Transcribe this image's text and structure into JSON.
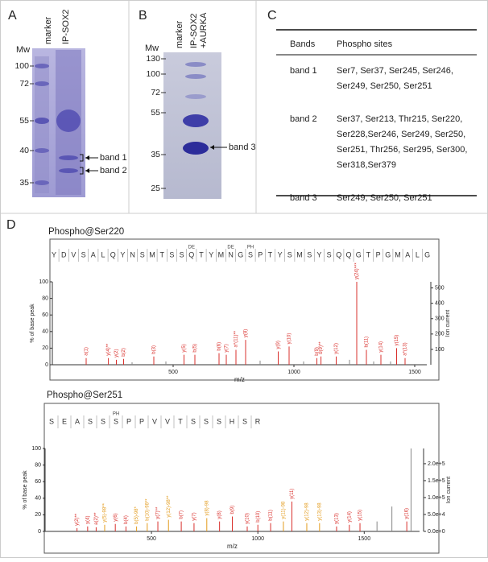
{
  "panels": {
    "a": {
      "letter": "A",
      "mw_label": "Mw",
      "lanes": [
        "marker",
        "IP-SOX2"
      ],
      "mw": [
        "100",
        "72",
        "55",
        "40",
        "35"
      ],
      "bands": [
        "band 1",
        "band 2"
      ]
    },
    "b": {
      "letter": "B",
      "mw_label": "Mw",
      "lanes": [
        "marker",
        "IP-SOX2",
        "+AURKA"
      ],
      "mw": [
        "130",
        "100",
        "72",
        "55",
        "35",
        "25"
      ],
      "bands": [
        "band 3"
      ]
    },
    "c": {
      "letter": "C",
      "table": {
        "header": [
          "Bands",
          "Phospho sites"
        ],
        "rows": [
          {
            "band": "band 1",
            "sites": [
              "Ser7, Ser37, Ser245, Ser246,",
              "Ser249, Ser250, Ser251"
            ]
          },
          {
            "band": "band 2",
            "sites": [
              "Ser37, Ser213, Thr215, Ser220,",
              "Ser228,Ser246, Ser249,  Ser250,",
              "Ser251, Thr256,  Ser295, Ser300,",
              "Ser318,Ser379"
            ]
          },
          {
            "band": "band 3",
            "sites": [
              "Ser249, Ser250, Ser251"
            ]
          }
        ]
      }
    },
    "d": {
      "letter": "D",
      "spectra": [
        {
          "title": "Phospho@Ser220",
          "sequence": [
            "Y",
            "D",
            "V",
            "S",
            "A",
            "L",
            "Q",
            "Y",
            "N",
            "S",
            "M",
            "T",
            "S",
            "S",
            "Q",
            "T",
            "Y",
            "M",
            "N",
            "G",
            "S",
            "P",
            "T",
            "Y",
            "S",
            "M",
            "S",
            "Y",
            "S",
            "Q",
            "Q",
            "G",
            "T",
            "P",
            "G",
            "M",
            "A",
            "L",
            "G"
          ],
          "mods": [
            {
              "index": 14,
              "label": "DE"
            },
            {
              "index": 18,
              "label": "DE"
            },
            {
              "index": 20,
              "label": "PH"
            }
          ],
          "x_label": "m/z",
          "y_label": "% of base peak",
          "y2_label": "Ion current",
          "xlim": [
            0,
            1550
          ],
          "xticks": [
            500,
            1000,
            1500
          ],
          "ylim": [
            0,
            100
          ],
          "yticks": [
            0,
            20,
            40,
            60,
            80,
            100
          ],
          "y2lim": [
            0,
            540
          ],
          "y2ticks": [
            100,
            200,
            300,
            400,
            500
          ],
          "peaks": {
            "mz": [
              140,
              232,
              265,
              295,
              330,
              420,
              470,
              545,
              590,
              690,
              720,
              760,
              800,
              860,
              935,
              980,
              1040,
              1095,
              1112,
              1175,
              1230,
              1260,
              1300,
              1330,
              1360,
              1400,
              1425,
              1460
            ],
            "intensity": [
              8,
              8,
              6,
              7,
              3,
              10,
              4,
              12,
              12,
              14,
              12,
              18,
              30,
              5,
              16,
              22,
              4,
              8,
              10,
              10,
              6,
              100,
              18,
              4,
              12,
              4,
              20,
              8
            ],
            "labels": [
              "a(1)",
              "y(4)**",
              "y(2)",
              "b(2)",
              null,
              "b(3)",
              null,
              "y(5)",
              "b(5)",
              "b(6)",
              "y(7)",
              "a*(11)**",
              "y(8)",
              null,
              "y(9)",
              "y(10)",
              null,
              "b(9)",
              "b(9)**",
              "y(12)",
              null,
              "y(24)***",
              "b(11)",
              null,
              "y(14)",
              null,
              "y(15)",
              "a*(13)"
            ],
            "colors": [
              "#d9302c",
              "#d9302c",
              "#d9302c",
              "#d9302c",
              "#888888",
              "#d9302c",
              "#888888",
              "#d9302c",
              "#d9302c",
              "#d9302c",
              "#d9302c",
              "#d9302c",
              "#d9302c",
              "#888888",
              "#d9302c",
              "#d9302c",
              "#888888",
              "#d9302c",
              "#d9302c",
              "#d9302c",
              "#888888",
              "#d9302c",
              "#d9302c",
              "#888888",
              "#d9302c",
              "#888888",
              "#d9302c",
              "#d9302c"
            ]
          }
        },
        {
          "title": "Phospho@Ser251",
          "sequence": [
            "S",
            "E",
            "A",
            "S",
            "S",
            "S",
            "P",
            "P",
            "V",
            "V",
            "T",
            "S",
            "S",
            "S",
            "H",
            "S",
            "R"
          ],
          "mods": [
            {
              "index": 5,
              "label": "PH"
            }
          ],
          "x_label": "m/z",
          "y_label": "% of base peak",
          "y2_label": "Ion current",
          "xlim": [
            0,
            1760
          ],
          "xticks": [
            500,
            1000,
            1500
          ],
          "ylim": [
            0,
            100
          ],
          "yticks": [
            0,
            20,
            40,
            60,
            80,
            100
          ],
          "y2lim": [
            0,
            245000
          ],
          "y2ticks": [
            {
              "value": 0,
              "label": "0.0e+0"
            },
            {
              "value": 50000,
              "label": "5.0e+4"
            },
            {
              "value": 100000,
              "label": "1.0e+5"
            },
            {
              "value": 150000,
              "label": "1.5e+5"
            },
            {
              "value": 200000,
              "label": "2.0e+5"
            }
          ],
          "peaks": {
            "mz": [
              150,
              200,
              240,
              280,
              330,
              380,
              430,
              480,
              530,
              580,
              640,
              700,
              760,
              820,
              880,
              950,
              1000,
              1060,
              1120,
              1160,
              1230,
              1290,
              1370,
              1430,
              1480,
              1560,
              1630,
              1700,
              1720
            ],
            "intensity": [
              4,
              6,
              5,
              8,
              9,
              6,
              6,
              10,
              12,
              14,
              12,
              10,
              16,
              12,
              18,
              6,
              8,
              10,
              12,
              36,
              10,
              10,
              6,
              8,
              10,
              12,
              30,
              12,
              100
            ],
            "labels": [
              "y(2)**",
              "y(4)",
              "a(2)**",
              "y(5)-98**",
              "y(6)",
              "b(4)",
              "b(5)-98*",
              "b(10)-98**",
              "y(7)**",
              "y(12)-98**",
              "b(7)",
              "y(7)",
              "y(8)-98",
              "y(8)",
              "b(9)",
              "y(10)",
              "b(10)",
              "b(11)",
              "y(11)-98",
              "y(11)",
              "y(12)-98",
              "y(13)-98",
              "y(13)",
              "y(14)",
              "y(15)",
              null,
              null,
              "y(16)",
              null
            ],
            "colors": [
              "#d9302c",
              "#d9302c",
              "#d9302c",
              "#e39b1c",
              "#d9302c",
              "#d9302c",
              "#e39b1c",
              "#e39b1c",
              "#d9302c",
              "#e39b1c",
              "#d9302c",
              "#d9302c",
              "#e39b1c",
              "#d9302c",
              "#d9302c",
              "#d9302c",
              "#d9302c",
              "#d9302c",
              "#e39b1c",
              "#d9302c",
              "#e39b1c",
              "#e39b1c",
              "#d9302c",
              "#d9302c",
              "#d9302c",
              "#888888",
              "#888888",
              "#d9302c",
              "#888888"
            ]
          }
        }
      ]
    }
  }
}
